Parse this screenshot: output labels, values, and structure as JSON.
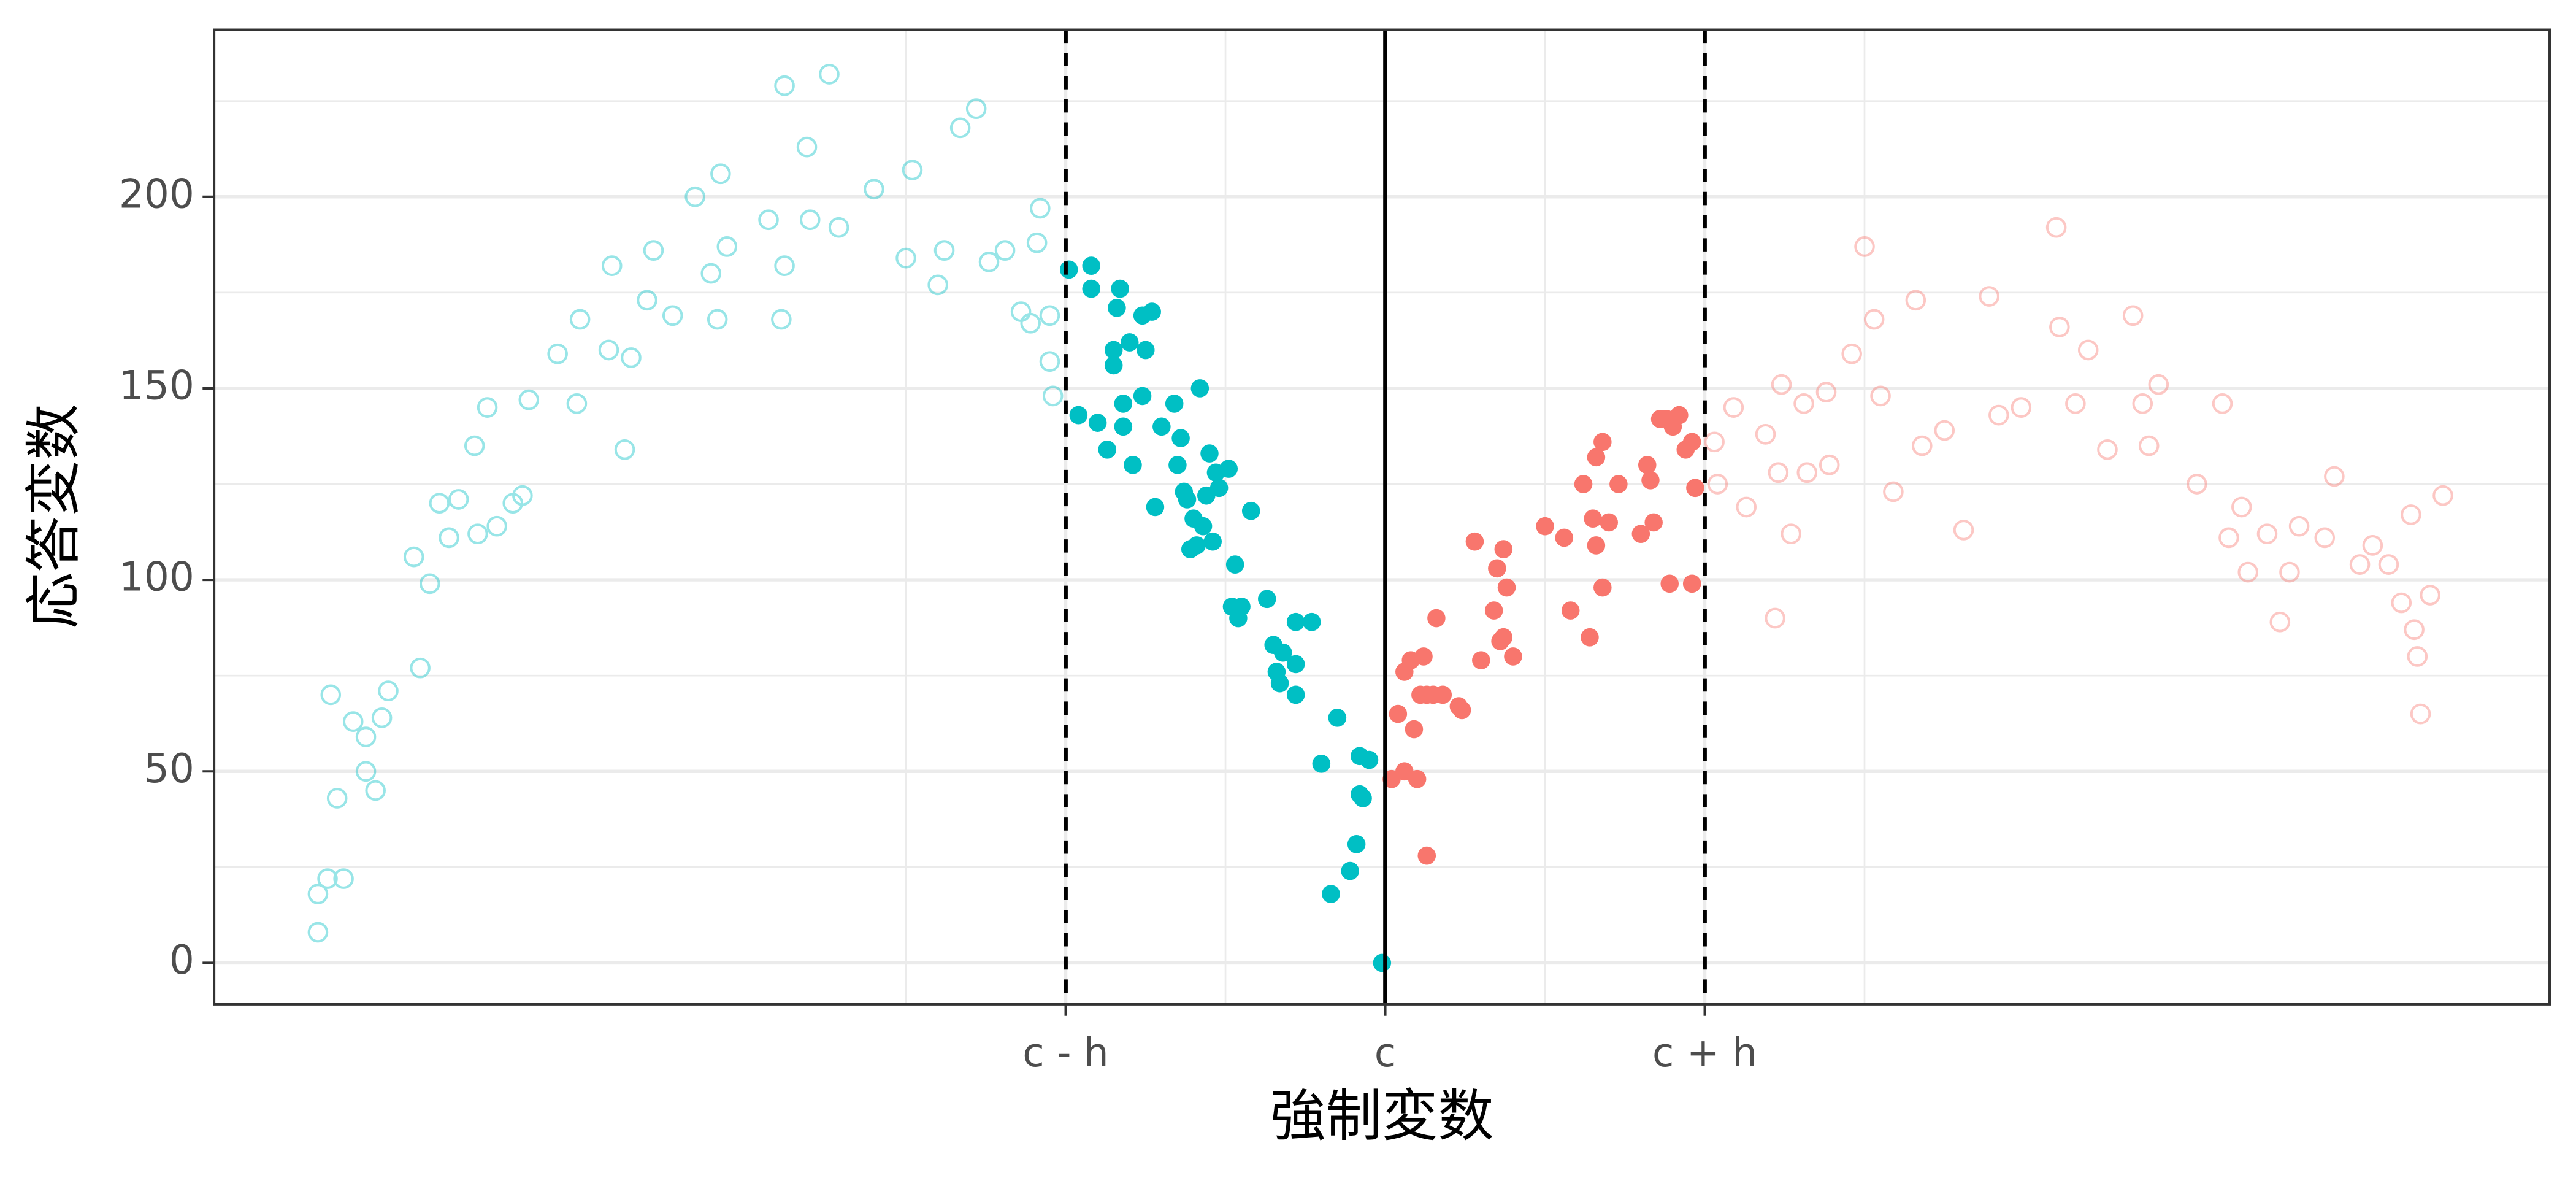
{
  "chart_data": {
    "type": "scatter",
    "x_label": "強制変数",
    "y_label": "応答変数",
    "xlim": [
      -3.665,
      3.644
    ],
    "ylim": [
      -10.8,
      243.6
    ],
    "xticks": [
      {
        "value": -1,
        "label": "c - h"
      },
      {
        "value": 0,
        "label": "c"
      },
      {
        "value": 1,
        "label": "c + h"
      }
    ],
    "yticks": [
      0,
      50,
      100,
      150,
      200
    ],
    "grid": true,
    "vlines": [
      {
        "x": -1,
        "dashed": true
      },
      {
        "x": 0,
        "dashed": false
      },
      {
        "x": 1,
        "dashed": true
      }
    ],
    "series": [
      {
        "color": "#00BFC4",
        "filled": false,
        "opacity": 0.4,
        "x": [
          -3.34,
          -3.34,
          -3.31,
          -3.3,
          -3.28,
          -3.26,
          -3.23,
          -3.19,
          -3.19,
          -3.16,
          -3.14,
          -3.12,
          -3.04,
          -3.02,
          -2.99,
          -2.96,
          -2.93,
          -2.9,
          -2.85,
          -2.84,
          -2.81,
          -2.78,
          -2.73,
          -2.7,
          -2.68,
          -2.59,
          -2.53,
          -2.52,
          -2.43,
          -2.42,
          -2.38,
          -2.36,
          -2.31,
          -2.29,
          -2.23,
          -2.16,
          -2.11,
          -2.09,
          -2.08,
          -2.06,
          -1.93,
          -1.89,
          -1.88,
          -1.88,
          -1.81,
          -1.8,
          -1.74,
          -1.71,
          -1.6,
          -1.5,
          -1.48,
          -1.4,
          -1.38,
          -1.33,
          -1.28,
          -1.24,
          -1.19,
          -1.14,
          -1.11,
          -1.09,
          -1.05,
          -1.05,
          -1.04,
          -1.08
        ],
        "values": [
          8,
          18,
          22,
          70,
          43,
          22,
          63,
          59,
          50,
          45,
          64,
          71,
          106,
          77,
          99,
          120,
          111,
          121,
          135,
          112,
          145,
          114,
          120,
          122,
          147,
          159,
          146,
          168,
          160,
          182,
          134,
          158,
          173,
          186,
          169,
          200,
          180,
          168,
          206,
          187,
          194,
          168,
          229,
          182,
          213,
          194,
          232,
          192,
          202,
          184,
          207,
          177,
          186,
          218,
          223,
          183,
          186,
          170,
          167,
          188,
          169,
          157,
          148,
          197
        ]
      },
      {
        "color": "#00BFC4",
        "filled": true,
        "opacity": 1,
        "x": [
          -0.99,
          -0.96,
          -0.92,
          -0.92,
          -0.9,
          -0.87,
          -0.85,
          -0.85,
          -0.84,
          -0.83,
          -0.82,
          -0.82,
          -0.8,
          -0.79,
          -0.76,
          -0.76,
          -0.75,
          -0.73,
          -0.72,
          -0.7,
          -0.66,
          -0.65,
          -0.64,
          -0.63,
          -0.62,
          -0.61,
          -0.6,
          -0.59,
          -0.58,
          -0.57,
          -0.56,
          -0.55,
          -0.54,
          -0.53,
          -0.52,
          -0.49,
          -0.48,
          -0.47,
          -0.46,
          -0.45,
          -0.42,
          -0.37,
          -0.35,
          -0.34,
          -0.33,
          -0.32,
          -0.28,
          -0.28,
          -0.28,
          -0.23,
          -0.2,
          -0.17,
          -0.15,
          -0.11,
          -0.09,
          -0.08,
          -0.08,
          -0.07,
          -0.05,
          -0.01
        ],
        "values": [
          181,
          143,
          182,
          176,
          141,
          134,
          160,
          156,
          171,
          176,
          140,
          146,
          162,
          130,
          148,
          169,
          160,
          170,
          119,
          140,
          146,
          130,
          137,
          123,
          121,
          108,
          116,
          109,
          150,
          114,
          122,
          133,
          110,
          128,
          124,
          129,
          93,
          104,
          90,
          93,
          118,
          95,
          83,
          76,
          73,
          81,
          89,
          78,
          70,
          89,
          52,
          18,
          64,
          24,
          31,
          54,
          44,
          43,
          53,
          0
        ]
      },
      {
        "color": "#F8766D",
        "filled": true,
        "opacity": 1,
        "x": [
          0.02,
          0.04,
          0.06,
          0.06,
          0.08,
          0.09,
          0.1,
          0.11,
          0.12,
          0.13,
          0.13,
          0.15,
          0.16,
          0.18,
          0.23,
          0.24,
          0.28,
          0.3,
          0.34,
          0.35,
          0.36,
          0.37,
          0.37,
          0.38,
          0.4,
          0.5,
          0.56,
          0.58,
          0.62,
          0.64,
          0.65,
          0.66,
          0.66,
          0.68,
          0.68,
          0.7,
          0.73,
          0.8,
          0.82,
          0.83,
          0.84,
          0.86,
          0.88,
          0.89,
          0.9,
          0.92,
          0.94,
          0.96,
          0.96,
          0.97
        ],
        "values": [
          48,
          65,
          50,
          76,
          79,
          61,
          48,
          70,
          80,
          28,
          70,
          70,
          90,
          70,
          67,
          66,
          110,
          79,
          92,
          103,
          84,
          85,
          108,
          98,
          80,
          114,
          111,
          92,
          125,
          85,
          116,
          132,
          109,
          98,
          136,
          115,
          125,
          112,
          130,
          126,
          115,
          142,
          142,
          99,
          140,
          143,
          134,
          99,
          136,
          124
        ]
      },
      {
        "color": "#F8766D",
        "filled": false,
        "opacity": 0.4,
        "x": [
          1.03,
          1.04,
          1.09,
          1.13,
          1.19,
          1.22,
          1.23,
          1.24,
          1.27,
          1.31,
          1.32,
          1.38,
          1.39,
          1.46,
          1.5,
          1.53,
          1.55,
          1.59,
          1.66,
          1.68,
          1.75,
          1.81,
          1.89,
          1.92,
          1.99,
          2.1,
          2.11,
          2.16,
          2.2,
          2.26,
          2.34,
          2.37,
          2.39,
          2.42,
          2.54,
          2.62,
          2.64,
          2.68,
          2.7,
          2.8,
          2.83,
          2.86,
          2.94,
          2.97,
          3.05,
          3.14,
          3.18,
          3.21,
          3.22,
          3.23,
          3.24,
          3.27,
          3.31,
          3.09,
          2.76
        ],
        "values": [
          136,
          125,
          145,
          119,
          138,
          90,
          128,
          151,
          112,
          146,
          128,
          149,
          130,
          159,
          187,
          168,
          148,
          123,
          173,
          135,
          139,
          113,
          174,
          143,
          145,
          192,
          166,
          146,
          160,
          134,
          169,
          146,
          135,
          151,
          125,
          146,
          111,
          119,
          102,
          89,
          102,
          114,
          111,
          127,
          104,
          104,
          94,
          117,
          87,
          80,
          65,
          96,
          122,
          109,
          112
        ]
      }
    ]
  }
}
